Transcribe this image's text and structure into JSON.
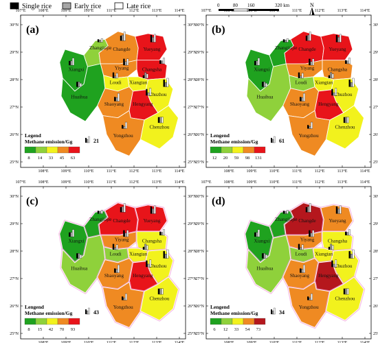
{
  "legend_top": [
    {
      "label": "Single rice",
      "color": "#000000"
    },
    {
      "label": "Early rice",
      "color": "#a6a6a6"
    },
    {
      "label": "Late rice",
      "color": "#ffffff"
    }
  ],
  "scalebar": {
    "ticks": [
      "0",
      "80",
      "160",
      "320 km"
    ]
  },
  "north_label": "N",
  "lon_labels": [
    "107°E",
    "108°E",
    "109°E",
    "110°E",
    "111°E",
    "112°E",
    "113°E",
    "114°E"
  ],
  "lon_labels_bottom": [
    "108°E",
    "109°E",
    "110°E",
    "111°E",
    "112°E",
    "113°E",
    "114°E"
  ],
  "lat_labels": [
    "30°N",
    "29°N",
    "28°N",
    "27°N",
    "26°N",
    "25°N"
  ],
  "cities": [
    "Zhangjiajie",
    "Changde",
    "Yueyang",
    "Xiangxi",
    "Yiyang",
    "Changsha",
    "Loudi",
    "Xiangtan",
    "Huaihua",
    "Zhuzhou",
    "Shaoyang",
    "Hengyang",
    "Yongzhou",
    "Chenzhou"
  ],
  "colors": {
    "green": "#1fa21f",
    "lightgreen": "#8fd13b",
    "yellow": "#f2f21d",
    "orange": "#ef8a22",
    "red": "#e8141a",
    "darkred": "#b5171d"
  },
  "panels": [
    {
      "id": "(a)",
      "legend_title1": "Legend",
      "legend_title2": "Methane emission/Gg",
      "scale_value": "21",
      "breaks": [
        "8",
        "14",
        "33",
        "45",
        "63"
      ],
      "fills": [
        "lightgreen",
        "orange",
        "red",
        "green",
        "orange",
        "red",
        "yellow",
        "yellow",
        "green",
        "yellow",
        "orange",
        "red",
        "orange",
        "yellow"
      ]
    },
    {
      "id": "(b)",
      "legend_title1": "Lengend",
      "legend_title2": "Methane emission/Gg",
      "scale_value": "61",
      "breaks": [
        "12",
        "20",
        "59",
        "98",
        "131"
      ],
      "fills": [
        "green",
        "red",
        "red",
        "green",
        "orange",
        "orange",
        "lightgreen",
        "yellow",
        "lightgreen",
        "yellow",
        "orange",
        "red",
        "orange",
        "yellow"
      ]
    },
    {
      "id": "(c)",
      "legend_title1": "Lengend",
      "legend_title2": "Methane emission/Gg",
      "scale_value": "43",
      "breaks": [
        "8",
        "15",
        "42",
        "70",
        "93"
      ],
      "fills": [
        "green",
        "red",
        "red",
        "green",
        "orange",
        "yellow",
        "lightgreen",
        "yellow",
        "lightgreen",
        "yellow",
        "orange",
        "red",
        "orange",
        "yellow"
      ]
    },
    {
      "id": "(d)",
      "legend_title1": "Lengend",
      "legend_title2": "Methane emission/Gg",
      "scale_value": "34",
      "breaks": [
        "6",
        "12",
        "33",
        "54",
        "73"
      ],
      "fills": [
        "green",
        "darkred",
        "orange",
        "green",
        "orange",
        "yellow",
        "lightgreen",
        "yellow",
        "lightgreen",
        "yellow",
        "orange",
        "darkred",
        "orange",
        "yellow"
      ]
    }
  ]
}
